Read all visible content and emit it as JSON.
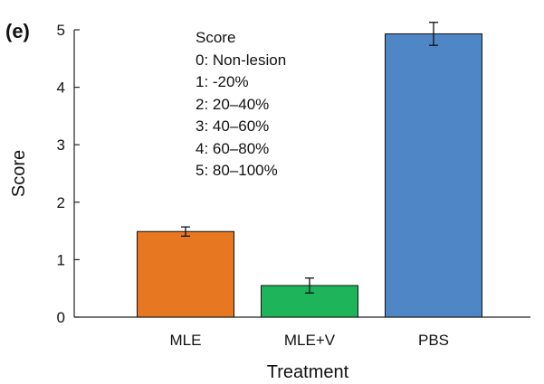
{
  "panel_label": "(e)",
  "legend_box": {
    "title": "Score",
    "lines": [
      "0: Non-lesion",
      "1: -20%",
      "2: 20–40%",
      "3: 40–60%",
      "4: 60–80%",
      "5: 80–100%"
    ]
  },
  "chart_data": {
    "type": "bar",
    "title": "",
    "xlabel": "Treatment",
    "ylabel": "Score",
    "ylim": [
      0,
      5
    ],
    "yticks": [
      0,
      1,
      2,
      3,
      4,
      5
    ],
    "grid": false,
    "categories": [
      "MLE",
      "MLE+V",
      "PBS"
    ],
    "values": [
      1.49,
      0.55,
      4.93
    ],
    "errors": [
      0.08,
      0.13,
      0.2
    ],
    "colors": [
      "#e87722",
      "#1db45a",
      "#4f86c6"
    ]
  }
}
